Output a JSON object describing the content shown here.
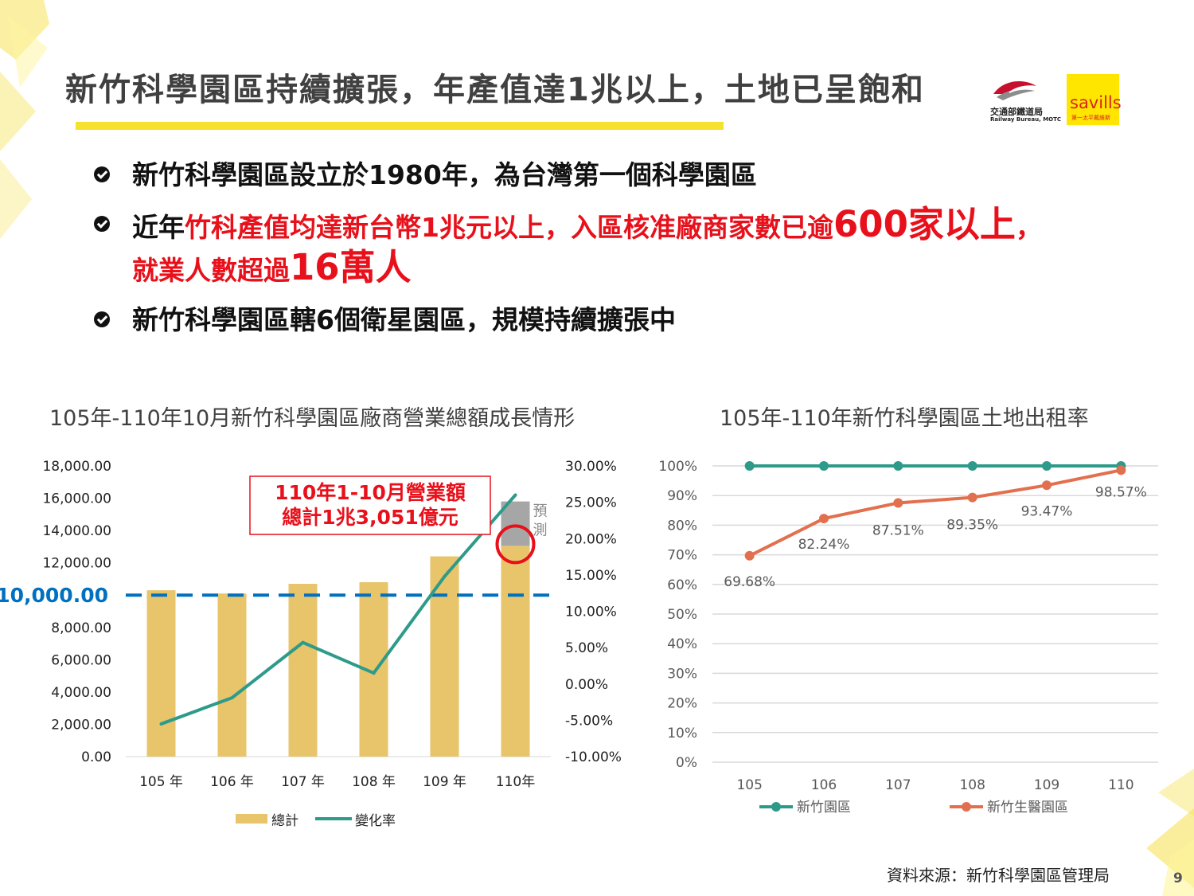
{
  "title": "新竹科學園區持續擴張，年產值達1兆以上，土地已呈飽和",
  "logos": {
    "motc_zh": "交通部鐵道局",
    "motc_en": "Railway Bureau, MOTC",
    "savills_word": "savills",
    "savills_tag": "第一太平戴維斯"
  },
  "bullets": {
    "b1": "新竹科學園區設立於1980年，為台灣第一個科學園區",
    "b2_black": "近年",
    "b2_red": "竹科產值均達新台幣1兆元以上，入區核准廠商家數已逾",
    "b2_big1": "600家以上",
    "b2_comma": "，",
    "b2_red2": "就業人數超過",
    "b2_big2": "16萬人",
    "b3": "新竹科學園區轄6個衛星園區，規模持續擴張中"
  },
  "source": "資料來源：新竹科學園區管理局",
  "page_number": "9",
  "colors": {
    "bar": "#e8c46a",
    "line": "#2e9b8a",
    "forecast": "#a6a6a6",
    "ref": "#0070c0",
    "red": "#e8111b",
    "orange": "#e2704f",
    "accent": "#f5e12e"
  },
  "chart_data": [
    {
      "type": "bar",
      "title": "105年-110年10月新竹科學園區廠商營業總額成長情形",
      "categories": [
        "105 年",
        "106 年",
        "107 年",
        "108 年",
        "109 年",
        "110年"
      ],
      "series": [
        {
          "name": "總計",
          "type": "bar",
          "axis": "left",
          "values": [
            10300,
            10100,
            10700,
            10800,
            12400,
            13051
          ]
        },
        {
          "name": "變化率",
          "type": "line",
          "axis": "right",
          "values": [
            -5.5,
            -1.9,
            5.7,
            1.5,
            14.8,
            26.0
          ]
        }
      ],
      "forecast": {
        "category": "110年",
        "from": 13051,
        "to": 15800,
        "label": "預測"
      },
      "y_left": {
        "min": 0,
        "max": 18000,
        "ticks": [
          "0.00",
          "2,000.00",
          "4,000.00",
          "6,000.00",
          "8,000.00",
          "12,000.00",
          "14,000.00",
          "16,000.00",
          "18,000.00"
        ],
        "tick_values": [
          0,
          2000,
          4000,
          6000,
          8000,
          12000,
          14000,
          16000,
          18000
        ]
      },
      "y_right": {
        "min": -10,
        "max": 30,
        "ticks": [
          "-10.00%",
          "-5.00%",
          "0.00%",
          "5.00%",
          "10.00%",
          "15.00%",
          "20.00%",
          "25.00%",
          "30.00%"
        ],
        "tick_values": [
          -10,
          -5,
          0,
          5,
          10,
          15,
          20,
          25,
          30
        ]
      },
      "reference_line": {
        "value": 10000,
        "label": "10,000.00"
      },
      "annotation": {
        "line1": "110年1-10月營業額",
        "line2": "總計1兆3,051億元"
      },
      "legend": [
        "總計",
        "變化率"
      ],
      "legend_position": "bottom"
    },
    {
      "type": "line",
      "title": "105年-110年新竹科學園區土地出租率",
      "categories": [
        "105",
        "106",
        "107",
        "108",
        "109",
        "110"
      ],
      "series": [
        {
          "name": "新竹園區",
          "values": [
            100,
            100,
            100,
            100,
            100,
            100
          ],
          "labels": []
        },
        {
          "name": "新竹生醫園區",
          "values": [
            69.68,
            82.24,
            87.51,
            89.35,
            93.47,
            98.57
          ],
          "labels": [
            "69.68%",
            "82.24%",
            "87.51%",
            "89.35%",
            "93.47%",
            "98.57%"
          ]
        }
      ],
      "ylim": [
        0,
        100
      ],
      "y_ticks": [
        "0%",
        "10%",
        "20%",
        "30%",
        "40%",
        "50%",
        "60%",
        "70%",
        "80%",
        "90%",
        "100%"
      ],
      "grid": true,
      "legend_position": "bottom"
    }
  ]
}
